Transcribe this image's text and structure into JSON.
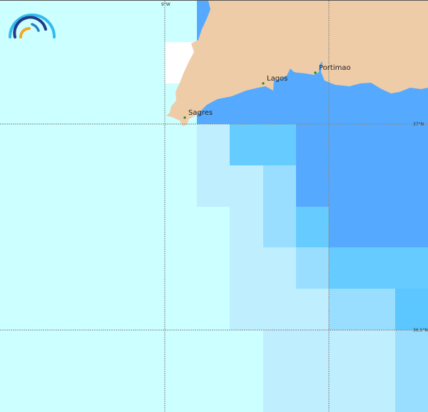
{
  "map": {
    "graticule": {
      "lon_label": "9°W",
      "lat_labels": [
        "37°N",
        "36.5°N"
      ]
    },
    "places": [
      {
        "name": "Sagres"
      },
      {
        "name": "Lagos"
      },
      {
        "name": "Portimao"
      }
    ],
    "colors": {
      "open_sea": "#ccffff",
      "no_data": "#ffffff",
      "land": "#efcca8",
      "level_1": "#bfeeff",
      "level_2": "#99ddff",
      "level_3": "#66ccff",
      "level_4": "#55aaff",
      "place_dot": "#1a8a1a"
    },
    "logo": "arc-logo"
  }
}
